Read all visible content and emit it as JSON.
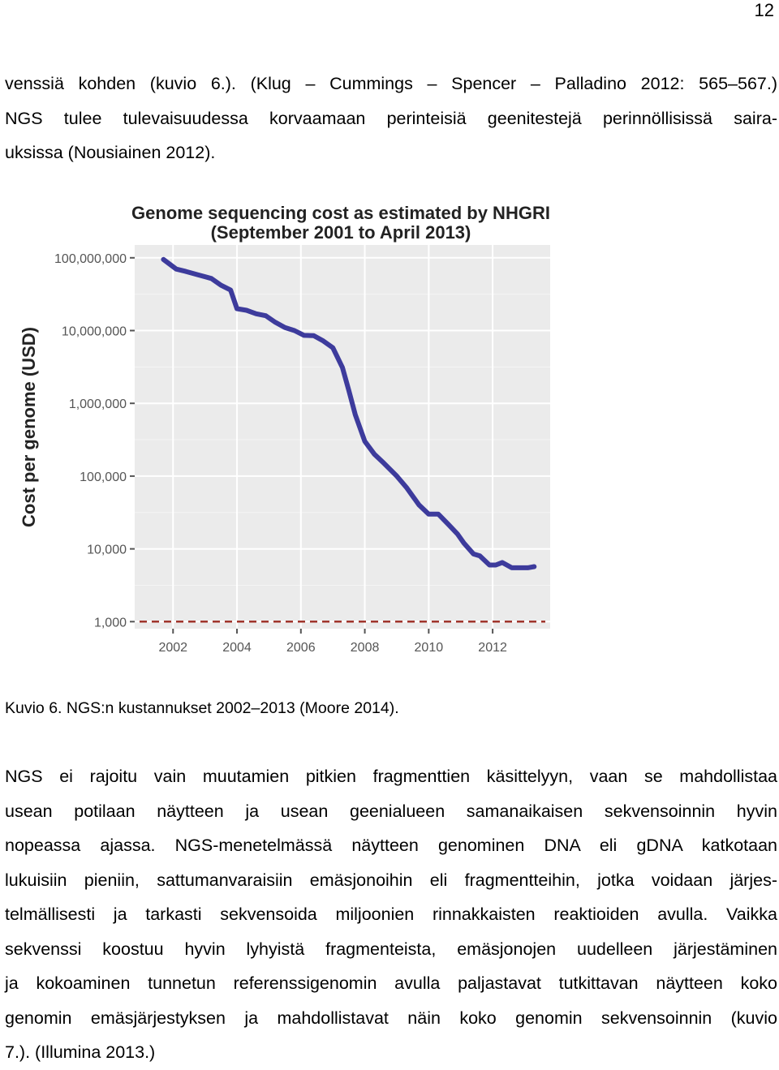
{
  "page_number": "12",
  "paragraph1": [
    "venssiä kohden (kuvio 6.). (Klug – Cummings – Spencer – Palladino 2012: 565–567.)",
    "NGS tulee tulevaisuudessa korvaamaan perinteisiä geenitestejä perinnöllisissä saira-",
    "uksissa (Nousiainen 2012)."
  ],
  "caption": "Kuvio 6. NGS:n kustannukset 2002–2013 (Moore 2014).",
  "paragraph2": [
    "NGS ei rajoitu vain muutamien pitkien fragmenttien käsittelyyn, vaan se mahdollistaa",
    "usean potilaan näytteen ja usean geenialueen samanaikaisen sekvensoinnin hyvin",
    "nopeassa ajassa. NGS-menetelmässä näytteen genominen DNA eli gDNA katkotaan",
    "lukuisiin pieniin, sattumanvaraisiin emäsjonoihin eli fragmentteihin, jotka voidaan järjes-",
    "telmällisesti ja tarkasti sekvensoida miljoonien rinnakkaisten reaktioiden avulla. Vaikka",
    "sekvenssi koostuu hyvin lyhyistä fragmenteista, emäsjonojen uudelleen järjestäminen",
    "ja kokoaminen tunnetun referenssigenomin avulla paljastavat tutkittavan näytteen koko",
    "genomin emäsjärjestyksen ja mahdollistavat näin koko genomin sekvensoinnin (kuvio",
    "7.). (Illumina 2013.)"
  ],
  "chart_data": {
    "type": "line",
    "title": "Genome sequencing cost as estimated by NHGRI",
    "subtitle": "(September 2001 to April 2013)",
    "xlabel": "",
    "ylabel": "Cost per genome (USD)",
    "y_scale": "log",
    "ylim": [
      800,
      150000000
    ],
    "xlim": [
      2000.8,
      2013.8
    ],
    "x_ticks": [
      2002,
      2004,
      2006,
      2008,
      2010,
      2012
    ],
    "x_tick_labels": [
      "2002",
      "2004",
      "2006",
      "2008",
      "2010",
      "2012"
    ],
    "y_ticks": [
      1000,
      10000,
      100000,
      1000000,
      10000000,
      100000000
    ],
    "y_tick_labels": [
      "1,000",
      "10,000",
      "100,000",
      "1,000,000",
      "10,000,000",
      "100,000,000"
    ],
    "reference_line": {
      "y": 1000,
      "style": "dashed",
      "color": "#a0352c"
    },
    "grid": true,
    "colors": {
      "line": "#3d3b9c",
      "panel": "#ebebeb",
      "grid": "#ffffff"
    },
    "series": [
      {
        "x": [
          2001.7,
          2002.1,
          2002.4,
          2002.8,
          2003.2,
          2003.5,
          2003.8,
          2004.0,
          2004.3,
          2004.6,
          2004.9,
          2005.2,
          2005.5,
          2005.8,
          2006.1,
          2006.4,
          2006.7,
          2007.0,
          2007.3,
          2007.5,
          2007.7,
          2008.0,
          2008.3,
          2008.6,
          2009.0,
          2009.3,
          2009.7,
          2010.0,
          2010.3,
          2010.6,
          2010.9,
          2011.1,
          2011.4,
          2011.6,
          2011.9,
          2012.1,
          2012.3,
          2012.6,
          2012.9,
          2013.1,
          2013.3
        ],
        "y": [
          95000000,
          70000000,
          65000000,
          58000000,
          52000000,
          42000000,
          36000000,
          20000000,
          19000000,
          17000000,
          16000000,
          13000000,
          11000000,
          10000000,
          8600000,
          8500000,
          7200000,
          5800000,
          3100000,
          1500000,
          700000,
          300000,
          200000,
          150000,
          100000,
          70000,
          40000,
          30000,
          30000,
          22000,
          16000,
          12000,
          8500,
          8000,
          6000,
          6000,
          6500,
          5500,
          5500,
          5500,
          5700
        ]
      }
    ]
  }
}
